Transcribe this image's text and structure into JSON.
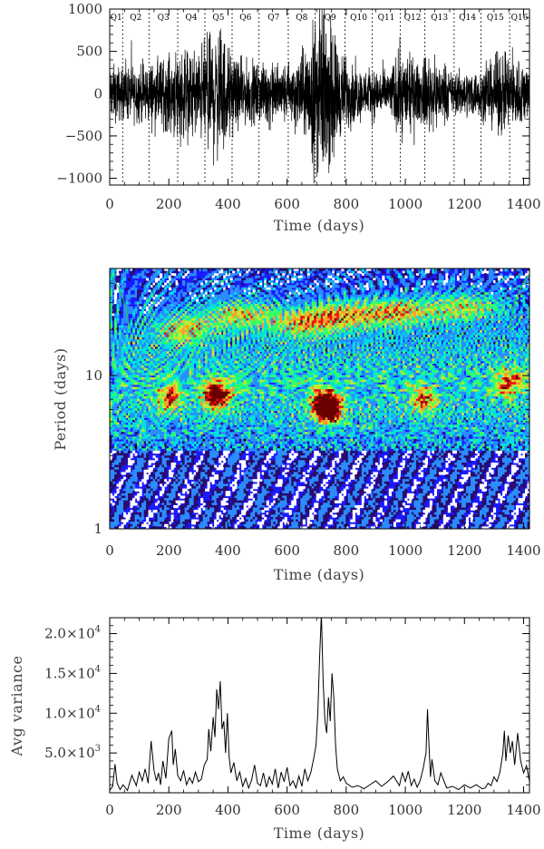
{
  "chart_data": [
    {
      "type": "line",
      "xlabel": "Time (days)",
      "ylabel": "",
      "xlim": [
        0,
        1420
      ],
      "ylim": [
        -1080,
        1000
      ],
      "xticks": [
        {
          "value": 0,
          "label": "0"
        },
        {
          "value": 200,
          "label": "200"
        },
        {
          "value": 400,
          "label": "400"
        },
        {
          "value": 600,
          "label": "600"
        },
        {
          "value": 800,
          "label": "800"
        },
        {
          "value": 1000,
          "label": "1000"
        },
        {
          "value": 1200,
          "label": "1200"
        },
        {
          "value": 1400,
          "label": "1400"
        }
      ],
      "yticks": [
        {
          "value": 1000,
          "label": "1000"
        },
        {
          "value": 500,
          "label": "500"
        },
        {
          "value": 0,
          "label": "0"
        },
        {
          "value": -500,
          "label": "−500"
        },
        {
          "value": -1000,
          "label": "−1000"
        }
      ],
      "quarter_boundaries": [
        0,
        44,
        133,
        230,
        322,
        414,
        505,
        604,
        695,
        796,
        888,
        983,
        1066,
        1165,
        1256,
        1353,
        1420
      ],
      "quarter_labels": [
        "Q1",
        "Q2",
        "Q3",
        "Q4",
        "Q5",
        "Q6",
        "Q7",
        "Q8",
        "Q9",
        "Q10",
        "Q11",
        "Q12",
        "Q13",
        "Q14",
        "Q15",
        "Q16"
      ],
      "amplitude_envelope": {
        "t": [
          0,
          40,
          100,
          200,
          230,
          300,
          340,
          380,
          420,
          500,
          600,
          660,
          690,
          720,
          750,
          790,
          850,
          950,
          980,
          1050,
          1080,
          1150,
          1250,
          1330,
          1360,
          1420
        ],
        "amp": [
          170,
          160,
          170,
          220,
          280,
          250,
          400,
          380,
          200,
          180,
          180,
          260,
          480,
          520,
          420,
          230,
          150,
          150,
          260,
          170,
          240,
          130,
          140,
          250,
          230,
          170
        ]
      }
    },
    {
      "type": "heatmap",
      "xlabel": "Time (days)",
      "ylabel": "Period (days)",
      "xlim": [
        0,
        1420
      ],
      "ylim": [
        1,
        50
      ],
      "yscale": "log",
      "xticks": [
        {
          "value": 0,
          "label": "0"
        },
        {
          "value": 200,
          "label": "200"
        },
        {
          "value": 400,
          "label": "400"
        },
        {
          "value": 600,
          "label": "600"
        },
        {
          "value": 800,
          "label": "800"
        },
        {
          "value": 1000,
          "label": "1000"
        },
        {
          "value": 1200,
          "label": "1200"
        },
        {
          "value": 1400,
          "label": "1400"
        }
      ],
      "yticks": [
        {
          "value": 1,
          "label": "1"
        },
        {
          "value": 10,
          "label": "10"
        }
      ],
      "colormap": [
        "#ffffff",
        "#000000",
        "#2a0a6e",
        "#1a1aff",
        "#2a8cff",
        "#00e0e0",
        "#33ff66",
        "#c8e632",
        "#ff9a2a",
        "#e81414",
        "#6a0000"
      ],
      "hotspots": [
        {
          "t": 360,
          "period": 7.5,
          "strength": 1.0
        },
        {
          "t": 720,
          "period": 6.5,
          "strength": 1.0
        },
        {
          "t": 750,
          "period": 6.0,
          "strength": 0.9
        },
        {
          "t": 780,
          "period": 25,
          "strength": 0.55
        },
        {
          "t": 970,
          "period": 26,
          "strength": 0.6
        },
        {
          "t": 1060,
          "period": 7,
          "strength": 0.6
        },
        {
          "t": 1350,
          "period": 9,
          "strength": 0.6
        },
        {
          "t": 200,
          "period": 7,
          "strength": 0.55
        },
        {
          "t": 250,
          "period": 20,
          "strength": 0.5
        },
        {
          "t": 440,
          "period": 25,
          "strength": 0.55
        },
        {
          "t": 650,
          "period": 22,
          "strength": 0.5
        },
        {
          "t": 1200,
          "period": 28,
          "strength": 0.5
        }
      ]
    },
    {
      "type": "line",
      "xlabel": "Time (days)",
      "ylabel": "Avg variance",
      "xlim": [
        0,
        1420
      ],
      "ylim": [
        0,
        22000
      ],
      "xticks": [
        {
          "value": 0,
          "label": "0"
        },
        {
          "value": 200,
          "label": "200"
        },
        {
          "value": 400,
          "label": "400"
        },
        {
          "value": 600,
          "label": "600"
        },
        {
          "value": 800,
          "label": "800"
        },
        {
          "value": 1000,
          "label": "1000"
        },
        {
          "value": 1200,
          "label": "1200"
        },
        {
          "value": 1400,
          "label": "1400"
        }
      ],
      "yticks": [
        {
          "value": 5000,
          "mantissa": "5.0×10",
          "exponent": "3"
        },
        {
          "value": 10000,
          "mantissa": "1.0×10",
          "exponent": "4"
        },
        {
          "value": 15000,
          "mantissa": "1.5×10",
          "exponent": "4"
        },
        {
          "value": 20000,
          "mantissa": "2.0×10",
          "exponent": "4"
        }
      ],
      "x": [
        0,
        10,
        18,
        25,
        35,
        45,
        60,
        75,
        90,
        100,
        110,
        120,
        130,
        140,
        150,
        158,
        165,
        172,
        180,
        190,
        200,
        210,
        215,
        222,
        230,
        240,
        250,
        260,
        270,
        280,
        290,
        300,
        310,
        320,
        330,
        335,
        342,
        350,
        356,
        362,
        368,
        374,
        380,
        386,
        392,
        398,
        404,
        410,
        420,
        430,
        440,
        450,
        460,
        470,
        480,
        490,
        500,
        510,
        520,
        530,
        540,
        550,
        560,
        570,
        580,
        590,
        600,
        610,
        620,
        630,
        640,
        650,
        660,
        670,
        680,
        690,
        698,
        704,
        710,
        716,
        722,
        728,
        734,
        740,
        746,
        752,
        758,
        764,
        770,
        780,
        790,
        800,
        820,
        840,
        860,
        880,
        900,
        920,
        940,
        960,
        980,
        990,
        1000,
        1010,
        1020,
        1030,
        1040,
        1050,
        1060,
        1070,
        1075,
        1080,
        1085,
        1090,
        1100,
        1110,
        1120,
        1140,
        1160,
        1180,
        1200,
        1220,
        1240,
        1260,
        1270,
        1280,
        1290,
        1300,
        1310,
        1320,
        1330,
        1335,
        1340,
        1348,
        1355,
        1362,
        1370,
        1380,
        1390,
        1400,
        1410,
        1420
      ],
      "y": [
        300,
        800,
        3600,
        1200,
        400,
        1000,
        300,
        2200,
        900,
        2600,
        1500,
        3000,
        1200,
        6500,
        2800,
        1500,
        2500,
        1000,
        4000,
        1800,
        6800,
        7800,
        3500,
        5500,
        2200,
        1500,
        2800,
        1000,
        1900,
        1200,
        2600,
        1400,
        1700,
        3500,
        4200,
        8000,
        5200,
        9500,
        7000,
        13000,
        10500,
        14000,
        8000,
        9000,
        5000,
        10000,
        4500,
        2500,
        3800,
        1500,
        2600,
        800,
        1800,
        600,
        1600,
        3500,
        1200,
        900,
        2500,
        700,
        2000,
        1100,
        3000,
        600,
        2600,
        1400,
        3200,
        900,
        1500,
        600,
        2100,
        800,
        3000,
        1500,
        2500,
        4300,
        6000,
        10000,
        17000,
        22500,
        14000,
        9000,
        7500,
        12000,
        9000,
        15000,
        12000,
        6000,
        3000,
        1500,
        2000,
        1200,
        700,
        900,
        500,
        1000,
        1500,
        800,
        1400,
        2100,
        900,
        2500,
        1400,
        2700,
        900,
        1700,
        700,
        1500,
        3000,
        5000,
        10500,
        6000,
        2000,
        4200,
        1500,
        1000,
        2500,
        600,
        800,
        400,
        1000,
        600,
        1000,
        500,
        600,
        1200,
        900,
        2000,
        1400,
        2600,
        5000,
        7800,
        4000,
        7200,
        5000,
        6500,
        3500,
        7500,
        4000,
        2500,
        3400,
        1400
      ]
    }
  ]
}
